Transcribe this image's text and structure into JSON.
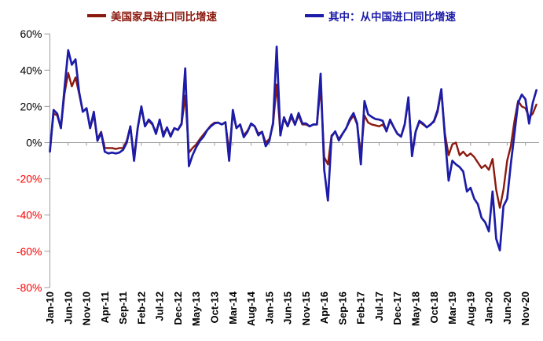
{
  "chart_data": {
    "type": "line",
    "title": "",
    "frequency": "monthly",
    "x_start": "Jan-10",
    "x_end": "Feb-21",
    "x_tick_interval_months": 5,
    "x_ticklabels": [
      "Jan-10",
      "Jun-10",
      "Nov-10",
      "Apr-11",
      "Sep-11",
      "Feb-12",
      "Jul-12",
      "Dec-12",
      "May-13",
      "Oct-13",
      "Mar-14",
      "Aug-14",
      "Jan-15",
      "Jun-15",
      "Nov-15",
      "Apr-16",
      "Sep-16",
      "Feb-17",
      "Jul-17",
      "Dec-17",
      "May-18",
      "Oct-18",
      "Mar-19",
      "Aug-19",
      "Jan-20",
      "Jun-20",
      "Nov-20"
    ],
    "y_ticklabels": [
      "60%",
      "40%",
      "20%",
      "0%",
      "-20%",
      "-40%",
      "-60%",
      "-80%"
    ],
    "ylim": [
      -80,
      60
    ],
    "y_step": 20,
    "y_unit": "%",
    "grid": "zero-line-only",
    "legend_position": "top-center",
    "colors": {
      "us_series": "#8B190E",
      "china_series": "#1C1CA8",
      "negative_tick_label": "#FF0000",
      "positive_tick_label": "#000000",
      "axis": "#9C9C9C"
    },
    "series": [
      {
        "name": "美国家具进口同比增速",
        "color": "#8B190E",
        "values": [
          -4,
          16,
          15,
          8,
          27,
          38.5,
          31,
          36,
          27,
          17,
          19,
          8,
          15,
          2,
          6,
          -3,
          -3,
          -3,
          -3.5,
          -3,
          -3,
          1,
          9,
          -8,
          8,
          19,
          9,
          12,
          10,
          6,
          12,
          5,
          8,
          4,
          8,
          7,
          10,
          26,
          -5.5,
          -3,
          -1,
          2,
          4.5,
          7,
          9.5,
          11,
          11,
          10,
          11,
          -5,
          16,
          8,
          10,
          4,
          6.5,
          10,
          9,
          5,
          6,
          0,
          2,
          10,
          32,
          5,
          13,
          9,
          14,
          10,
          15,
          10,
          10,
          9,
          10,
          10,
          31,
          -8,
          -12,
          4,
          6,
          2,
          5,
          8,
          12,
          15,
          10,
          -7,
          15,
          11,
          10,
          9.5,
          9,
          10,
          6.5,
          12,
          8.5,
          5,
          3.5,
          10,
          23.6,
          -5.4,
          6,
          11.5,
          10,
          8.5,
          10,
          11.5,
          17,
          28.8,
          5,
          -7,
          -1,
          0,
          -7,
          -5,
          -7.5,
          -6,
          -8,
          -11,
          -14,
          -12.5,
          -15,
          -9,
          -26,
          -36,
          -26,
          -10,
          -2,
          12,
          23,
          20,
          19,
          14,
          16,
          21
        ]
      },
      {
        "name": "其中：从中国进口同比增速",
        "color": "#1C1CA8",
        "values": [
          -5,
          18,
          16,
          8,
          30,
          51,
          43,
          46,
          28,
          17,
          19,
          8,
          17,
          1,
          5.5,
          -5,
          -6,
          -5.5,
          -6,
          -5.5,
          -4,
          0,
          9,
          -10,
          8,
          20,
          9,
          12.7,
          10.6,
          4.8,
          12.7,
          3.3,
          8.4,
          3.3,
          8,
          7,
          10.6,
          41,
          -13,
          -7,
          -2.5,
          1,
          3.3,
          6.9,
          9,
          10.6,
          11,
          10,
          11.3,
          -10,
          18,
          8,
          10,
          3,
          6,
          10.6,
          9,
          4,
          6,
          -2,
          1,
          11,
          53,
          4,
          14,
          9,
          15.6,
          9.8,
          16.3,
          10.6,
          10.6,
          9,
          10,
          10,
          38,
          -15,
          -32,
          3.3,
          6.2,
          1.2,
          4.8,
          8,
          13,
          16.3,
          10.6,
          -12,
          23,
          15.6,
          14.2,
          13,
          12.7,
          12,
          6.2,
          12.7,
          8.4,
          4.8,
          3.3,
          10,
          25,
          -7.5,
          6.2,
          12,
          10.6,
          8.4,
          9.8,
          12,
          18,
          29.5,
          3,
          -21,
          -10,
          -12,
          -13.5,
          -16,
          -27,
          -25,
          -31,
          -34,
          -41.5,
          -44,
          -49,
          -27,
          -53,
          -59.5,
          -35,
          -31,
          -12,
          5,
          22,
          26.5,
          24,
          10.5,
          22,
          29
        ]
      }
    ]
  }
}
